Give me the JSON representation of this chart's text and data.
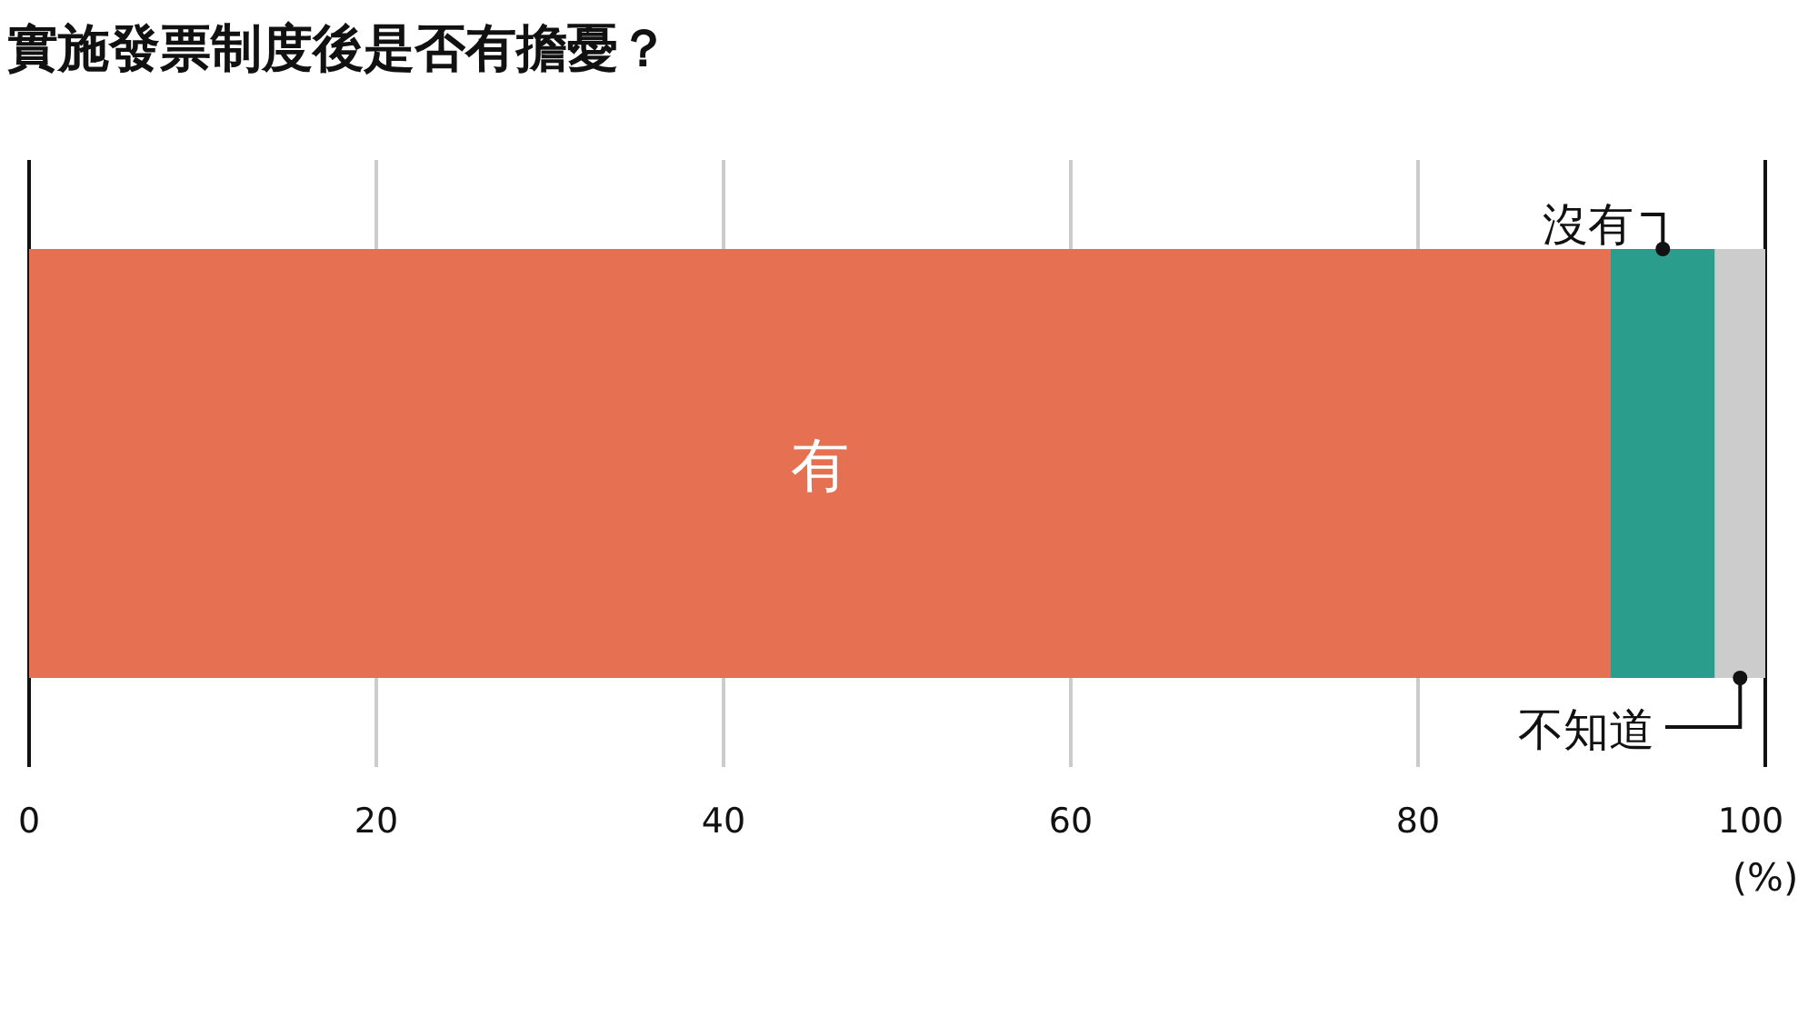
{
  "chart_data": {
    "type": "bar",
    "title": "實施發票制度後是否有擔憂？",
    "orientation": "horizontal",
    "stacked": true,
    "categories": [
      null
    ],
    "series": [
      {
        "name": "有",
        "color": "#e67052",
        "values": [
          91.1
        ]
      },
      {
        "name": "沒有",
        "color": "#2a9d8c",
        "values": [
          6.0
        ]
      },
      {
        "name": "不知道",
        "color": "#cccccc",
        "values": [
          2.9
        ]
      }
    ],
    "xlim": [
      0,
      100
    ],
    "xticks": [
      0,
      20,
      40,
      60,
      80,
      100
    ],
    "xlabel": "(%)",
    "grid": "x"
  }
}
